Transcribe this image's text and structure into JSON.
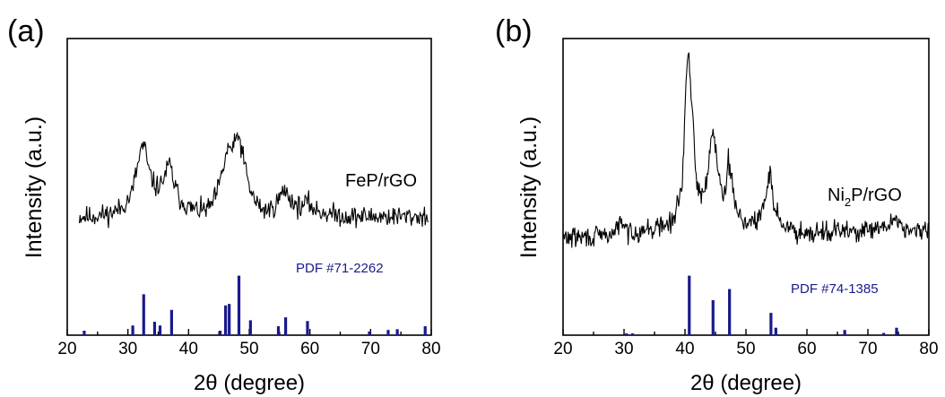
{
  "colors": {
    "pattern": "#000000",
    "reference": "#1a1a8c",
    "frame": "#000000"
  },
  "chart_data": [
    {
      "type": "line",
      "panel_label": "(a)",
      "xlabel": "2θ (degree)",
      "ylabel": "Intensity (a.u.)",
      "xlim": [
        20,
        80
      ],
      "xticks": [
        "20",
        "30",
        "40",
        "50",
        "60",
        "70",
        "80"
      ],
      "yticks": [],
      "grid": false,
      "series": [
        {
          "name": "FeP/rGO",
          "baseline": 0.4,
          "noise": 0.022,
          "x": [
            22,
            24,
            27,
            29,
            30.5,
            31.5,
            32.3,
            32.8,
            33.5,
            34.5,
            35.5,
            36.3,
            36.9,
            37.5,
            38.5,
            40,
            42,
            43.5,
            44.5,
            45.5,
            46.2,
            46.8,
            47.3,
            47.8,
            48.2,
            48.6,
            49.2,
            50,
            51,
            52.5,
            54,
            55.2,
            55.8,
            56.5,
            57.5,
            58.5,
            59.5,
            61,
            63,
            66,
            70,
            74,
            79.5
          ],
          "y": [
            0.4,
            0.4,
            0.41,
            0.43,
            0.47,
            0.56,
            0.64,
            0.63,
            0.55,
            0.5,
            0.51,
            0.55,
            0.58,
            0.52,
            0.46,
            0.43,
            0.42,
            0.43,
            0.47,
            0.54,
            0.61,
            0.64,
            0.62,
            0.66,
            0.68,
            0.64,
            0.58,
            0.5,
            0.45,
            0.42,
            0.43,
            0.47,
            0.49,
            0.47,
            0.44,
            0.43,
            0.45,
            0.42,
            0.41,
            0.4,
            0.4,
            0.4,
            0.4
          ]
        }
      ],
      "annotation": "FeP/rGO",
      "reference": {
        "name": "PDF #71-2262",
        "peaks": [
          [
            22.8,
            0.06
          ],
          [
            30.8,
            0.13
          ],
          [
            32.6,
            0.55
          ],
          [
            34.4,
            0.18
          ],
          [
            35.3,
            0.13
          ],
          [
            37.2,
            0.34
          ],
          [
            45.2,
            0.06
          ],
          [
            46.1,
            0.4
          ],
          [
            46.7,
            0.42
          ],
          [
            48.3,
            0.8
          ],
          [
            50.2,
            0.2
          ],
          [
            54.8,
            0.12
          ],
          [
            56.0,
            0.24
          ],
          [
            59.6,
            0.19
          ],
          [
            69.8,
            0.05
          ],
          [
            72.9,
            0.07
          ],
          [
            74.4,
            0.08
          ],
          [
            79.0,
            0.12
          ]
        ]
      }
    },
    {
      "type": "line",
      "panel_label": "(b)",
      "xlabel": "2θ (degree)",
      "ylabel": "Intensity (a.u.)",
      "xlim": [
        20,
        80
      ],
      "xticks": [
        "20",
        "30",
        "40",
        "50",
        "60",
        "70",
        "80"
      ],
      "yticks": [],
      "grid": false,
      "series": [
        {
          "name": "Ni2P/rGO",
          "baseline": 0.33,
          "noise": 0.022,
          "x": [
            20,
            25,
            28,
            29.5,
            30.5,
            32,
            35,
            38,
            39.5,
            40.2,
            40.6,
            41.2,
            42,
            43,
            43.8,
            44.4,
            45,
            45.8,
            46.6,
            47.1,
            47.6,
            48.5,
            50,
            52,
            53.2,
            53.9,
            54.6,
            56,
            58,
            62,
            66,
            70,
            73,
            74.5,
            75.5,
            77,
            80
          ],
          "y": [
            0.33,
            0.33,
            0.34,
            0.38,
            0.35,
            0.35,
            0.36,
            0.38,
            0.5,
            0.86,
            0.93,
            0.76,
            0.5,
            0.46,
            0.56,
            0.71,
            0.64,
            0.5,
            0.49,
            0.59,
            0.53,
            0.42,
            0.38,
            0.38,
            0.46,
            0.56,
            0.44,
            0.37,
            0.35,
            0.35,
            0.35,
            0.35,
            0.36,
            0.4,
            0.37,
            0.35,
            0.35
          ]
        }
      ],
      "annotation": {
        "text_before": "Ni",
        "subscript": "2",
        "text_after": "P/rGO"
      },
      "reference": {
        "name": "PDF #74-1385",
        "peaks": [
          [
            30.4,
            0.02
          ],
          [
            31.4,
            0.02
          ],
          [
            40.7,
            0.8
          ],
          [
            44.6,
            0.47
          ],
          [
            47.3,
            0.62
          ],
          [
            54.1,
            0.3
          ],
          [
            54.9,
            0.1
          ],
          [
            66.2,
            0.07
          ],
          [
            72.6,
            0.03
          ],
          [
            74.7,
            0.1
          ]
        ]
      }
    }
  ]
}
